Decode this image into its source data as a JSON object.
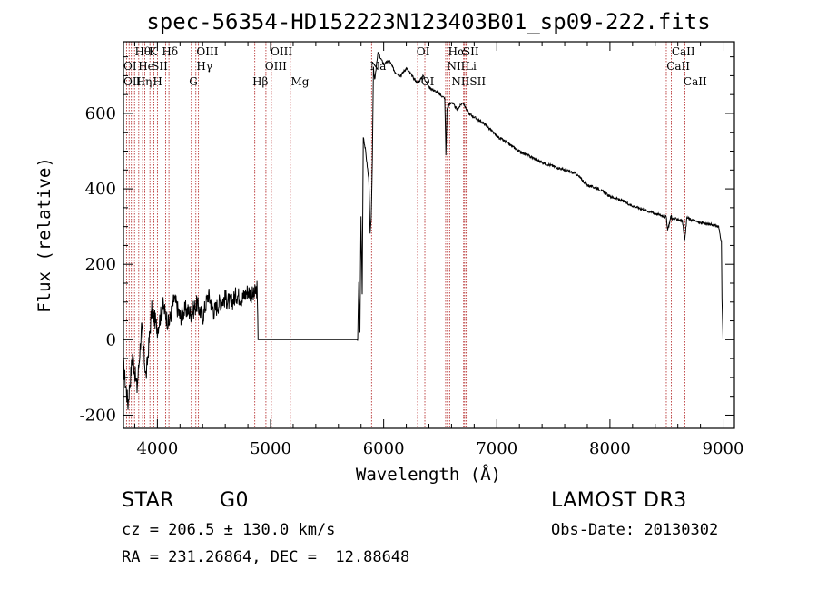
{
  "chart_data": {
    "type": "line",
    "title": "spec-56354-HD152223N123403B01_sp09-222.fits",
    "xlabel": "Wavelength (Å)",
    "ylabel": "Flux (relative)",
    "xlim": [
      3700,
      9100
    ],
    "ylim": [
      -235,
      790
    ],
    "xticks": [
      4000,
      5000,
      6000,
      7000,
      8000,
      9000
    ],
    "yticks": [
      -200,
      0,
      200,
      400,
      600
    ],
    "series": [
      {
        "name": "flux",
        "x": [
          3700,
          3740,
          3780,
          3820,
          3860,
          3900,
          3950,
          4000,
          4050,
          4100,
          4150,
          4200,
          4250,
          4300,
          4350,
          4400,
          4450,
          4500,
          4550,
          4600,
          4650,
          4700,
          4750,
          4800,
          4850,
          4880,
          4890,
          5000,
          5200,
          5400,
          5600,
          5770,
          5780,
          5790,
          5800,
          5810,
          5820,
          5840,
          5870,
          5880,
          5890,
          5900,
          5910,
          5920,
          5950,
          6000,
          6050,
          6100,
          6150,
          6200,
          6250,
          6300,
          6350,
          6400,
          6450,
          6500,
          6540,
          6550,
          6560,
          6570,
          6600,
          6650,
          6700,
          6750,
          6800,
          6900,
          7000,
          7100,
          7200,
          7300,
          7400,
          7500,
          7600,
          7700,
          7800,
          7900,
          8000,
          8100,
          8200,
          8300,
          8400,
          8450,
          8498,
          8510,
          8542,
          8550,
          8600,
          8640,
          8662,
          8680,
          8700,
          8800,
          8900,
          8960,
          8985,
          8990,
          9000
        ],
        "y": [
          -70,
          -170,
          -40,
          -130,
          30,
          -100,
          80,
          30,
          90,
          40,
          110,
          60,
          80,
          70,
          95,
          60,
          120,
          75,
          100,
          110,
          95,
          120,
          110,
          130,
          115,
          135,
          0,
          0,
          0,
          0,
          0,
          0,
          150,
          20,
          330,
          120,
          540,
          500,
          420,
          280,
          320,
          480,
          720,
          690,
          760,
          730,
          740,
          710,
          700,
          720,
          700,
          680,
          700,
          670,
          660,
          650,
          640,
          490,
          610,
          620,
          630,
          610,
          630,
          600,
          590,
          570,
          540,
          520,
          500,
          485,
          470,
          460,
          450,
          440,
          410,
          400,
          380,
          370,
          355,
          345,
          335,
          330,
          325,
          290,
          330,
          320,
          320,
          315,
          265,
          325,
          320,
          310,
          305,
          300,
          260,
          110,
          0
        ]
      }
    ],
    "lines": [
      {
        "x": 3727,
        "labels": [
          "OII"
        ]
      },
      {
        "x": 3750,
        "labels": [
          "OII"
        ]
      },
      {
        "x": 3770,
        "labels": [
          "Hθ"
        ]
      },
      {
        "x": 3798,
        "labels": [
          "Hθ"
        ]
      },
      {
        "x": 3835,
        "labels": [
          "Hη"
        ]
      },
      {
        "x": 3869,
        "labels": [
          "He"
        ]
      },
      {
        "x": 3889,
        "labels": [
          "He"
        ]
      },
      {
        "x": 3934,
        "labels": [
          "K"
        ]
      },
      {
        "x": 3969,
        "labels": [
          "H"
        ]
      },
      {
        "x": 4000,
        "labels": [
          "SII"
        ]
      },
      {
        "x": 4074,
        "labels": [
          "SII"
        ]
      },
      {
        "x": 4102,
        "labels": [
          "Hδ"
        ]
      },
      {
        "x": 4300,
        "labels": [
          "G"
        ]
      },
      {
        "x": 4340,
        "labels": [
          "Hγ"
        ]
      },
      {
        "x": 4363,
        "labels": [
          "OIII"
        ]
      },
      {
        "x": 4861,
        "labels": [
          "Hβ"
        ]
      },
      {
        "x": 4959,
        "labels": [
          "OIII"
        ]
      },
      {
        "x": 5007,
        "labels": [
          "OIII"
        ]
      },
      {
        "x": 5175,
        "labels": [
          "Mg"
        ]
      },
      {
        "x": 5893,
        "labels": [
          "Na"
        ]
      },
      {
        "x": 6300,
        "labels": [
          "OI"
        ]
      },
      {
        "x": 6364,
        "labels": [
          "OI"
        ]
      },
      {
        "x": 6548,
        "labels": [
          "NII"
        ]
      },
      {
        "x": 6563,
        "labels": [
          "Hα"
        ]
      },
      {
        "x": 6583,
        "labels": [
          "NII"
        ]
      },
      {
        "x": 6707,
        "labels": [
          "Li"
        ]
      },
      {
        "x": 6716,
        "labels": [
          "SII"
        ]
      },
      {
        "x": 6730,
        "labels": [
          "SII"
        ]
      },
      {
        "x": 8498,
        "labels": [
          "CaII"
        ]
      },
      {
        "x": 8542,
        "labels": [
          "CaII"
        ]
      },
      {
        "x": 8662,
        "labels": [
          "CaII"
        ]
      }
    ],
    "line_label_rows": [
      [
        {
          "x": 3800,
          "text": "Hθ"
        },
        {
          "x": 3925,
          "text": "K"
        },
        {
          "x": 4040,
          "text": "Hδ"
        },
        {
          "x": 4345,
          "text": "OIII"
        },
        {
          "x": 5000,
          "text": "OIII"
        },
        {
          "x": 6290,
          "text": "OI"
        },
        {
          "x": 6570,
          "text": "Hα"
        },
        {
          "x": 6700,
          "text": "SII"
        },
        {
          "x": 8545,
          "text": "CaII"
        }
      ],
      [
        {
          "x": 3700,
          "text": "OI"
        },
        {
          "x": 3830,
          "text": "He"
        },
        {
          "x": 3950,
          "text": "SII"
        },
        {
          "x": 4345,
          "text": "Hγ"
        },
        {
          "x": 4950,
          "text": "OIII"
        },
        {
          "x": 5880,
          "text": "Na"
        },
        {
          "x": 6560,
          "text": "NII"
        },
        {
          "x": 6725,
          "text": "Li"
        },
        {
          "x": 8500,
          "text": "CaII"
        }
      ],
      [
        {
          "x": 3700,
          "text": "OII"
        },
        {
          "x": 3810,
          "text": "Hη"
        },
        {
          "x": 3960,
          "text": "H"
        },
        {
          "x": 4280,
          "text": "G"
        },
        {
          "x": 4840,
          "text": "Hβ"
        },
        {
          "x": 5180,
          "text": "Mg"
        },
        {
          "x": 6330,
          "text": "OI"
        },
        {
          "x": 6600,
          "text": "NIISII"
        },
        {
          "x": 8650,
          "text": "CaII"
        }
      ]
    ]
  },
  "info": {
    "object_class": "STAR",
    "subclass": "G0",
    "survey": "LAMOST DR3",
    "cz_line": "cz = 206.5 ± 130.0 km/s",
    "obs_date_line": "Obs-Date: 20130302",
    "radec_line": "RA = 231.26864, DEC =  12.88648"
  },
  "colors": {
    "spectrum": "#000000",
    "line_marker": "#b22222",
    "axes": "#000000"
  }
}
